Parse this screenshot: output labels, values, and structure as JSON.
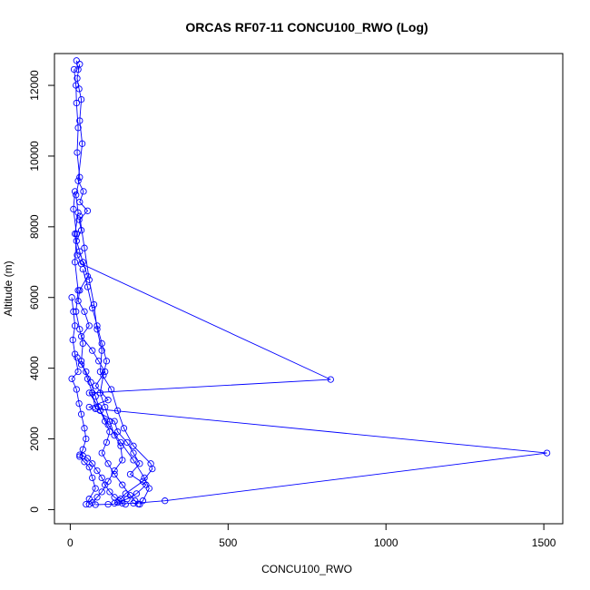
{
  "chart_data": {
    "type": "line",
    "title": "ORCAS RF07-11 CONCU100_RWO (Log)",
    "xlabel": "CONCU100_RWO",
    "ylabel": "Altitude (m)",
    "xlim": [
      -50,
      1560
    ],
    "ylim": [
      -400,
      12900
    ],
    "xticks": [
      0,
      500,
      1000,
      1500
    ],
    "yticks": [
      0,
      2000,
      4000,
      6000,
      8000,
      10000,
      12000
    ],
    "grid": false,
    "legend": "none",
    "color": "#0000ff",
    "marker": "open-circle",
    "series": [
      {
        "values": [
          [
            20,
            12700
          ],
          [
            25,
            12450
          ],
          [
            30,
            12600
          ],
          [
            22,
            12200
          ],
          [
            28,
            11900
          ],
          [
            35,
            11600
          ],
          [
            30,
            11000
          ],
          [
            38,
            10350
          ],
          [
            25,
            9300
          ],
          [
            42,
            9000
          ],
          [
            30,
            8700
          ],
          [
            55,
            8450
          ],
          [
            28,
            8200
          ],
          [
            35,
            7900
          ],
          [
            20,
            7600
          ],
          [
            30,
            7300
          ],
          [
            40,
            7000
          ],
          [
            55,
            6600
          ],
          [
            30,
            6200
          ],
          [
            25,
            5900
          ],
          [
            45,
            5600
          ],
          [
            60,
            5200
          ],
          [
            35,
            4900
          ],
          [
            70,
            4500
          ],
          [
            90,
            4200
          ],
          [
            110,
            3900
          ],
          [
            80,
            3500
          ],
          [
            120,
            3100
          ],
          [
            60,
            2900
          ],
          [
            140,
            2500
          ],
          [
            150,
            2200
          ],
          [
            180,
            1900
          ],
          [
            200,
            1600
          ],
          [
            220,
            1300
          ],
          [
            190,
            1000
          ],
          [
            240,
            700
          ],
          [
            210,
            450
          ],
          [
            180,
            300
          ],
          [
            150,
            200
          ]
        ]
      },
      {
        "values": [
          [
            12,
            12450
          ],
          [
            18,
            12000
          ],
          [
            20,
            11500
          ],
          [
            25,
            10800
          ],
          [
            22,
            10100
          ],
          [
            30,
            9400
          ],
          [
            18,
            8900
          ],
          [
            25,
            8400
          ],
          [
            15,
            7800
          ],
          [
            22,
            7200
          ],
          [
            35,
            6950
          ],
          [
            825,
            3680
          ],
          [
            60,
            3300
          ],
          [
            90,
            2900
          ],
          [
            120,
            2400
          ],
          [
            160,
            1900
          ],
          [
            200,
            1400
          ],
          [
            235,
            900
          ],
          [
            250,
            600
          ],
          [
            230,
            250
          ],
          [
            220,
            150
          ]
        ]
      },
      {
        "values": [
          [
            15,
            9000
          ],
          [
            10,
            8500
          ],
          [
            20,
            7800
          ],
          [
            15,
            7000
          ],
          [
            25,
            6200
          ],
          [
            18,
            5600
          ],
          [
            30,
            5100
          ],
          [
            40,
            4700
          ],
          [
            35,
            4200
          ],
          [
            55,
            3700
          ],
          [
            70,
            3300
          ],
          [
            80,
            2850
          ],
          [
            1510,
            1600
          ],
          [
            300,
            250
          ],
          [
            200,
            180
          ],
          [
            120,
            150
          ],
          [
            80,
            140
          ]
        ]
      },
      {
        "values": [
          [
            30,
            8300
          ],
          [
            45,
            7400
          ],
          [
            60,
            6500
          ],
          [
            75,
            5800
          ],
          [
            85,
            5100
          ],
          [
            100,
            4500
          ],
          [
            95,
            3900
          ],
          [
            130,
            3400
          ],
          [
            150,
            2800
          ],
          [
            170,
            2300
          ],
          [
            200,
            1800
          ],
          [
            255,
            1300
          ],
          [
            260,
            1150
          ],
          [
            230,
            800
          ],
          [
            175,
            450
          ],
          [
            160,
            300
          ],
          [
            140,
            180
          ]
        ]
      },
      {
        "values": [
          [
            5,
            6000
          ],
          [
            10,
            5600
          ],
          [
            15,
            5200
          ],
          [
            8,
            4800
          ],
          [
            15,
            4400
          ],
          [
            25,
            3900
          ],
          [
            5,
            3700
          ],
          [
            20,
            3400
          ],
          [
            28,
            3000
          ],
          [
            35,
            2700
          ],
          [
            45,
            2300
          ],
          [
            50,
            2000
          ],
          [
            40,
            1700
          ],
          [
            30,
            1500
          ],
          [
            45,
            1350
          ],
          [
            60,
            1200
          ],
          [
            70,
            900
          ],
          [
            80,
            600
          ],
          [
            60,
            300
          ],
          [
            50,
            150
          ]
        ]
      },
      {
        "values": [
          [
            40,
            6800
          ],
          [
            55,
            6300
          ],
          [
            70,
            5700
          ],
          [
            85,
            5200
          ],
          [
            100,
            4700
          ],
          [
            115,
            4200
          ],
          [
            105,
            3800
          ],
          [
            95,
            3300
          ],
          [
            110,
            2900
          ],
          [
            125,
            2500
          ],
          [
            140,
            2100
          ],
          [
            160,
            1800
          ],
          [
            165,
            1400
          ],
          [
            140,
            1100
          ],
          [
            120,
            800
          ],
          [
            100,
            500
          ],
          [
            85,
            350
          ],
          [
            70,
            200
          ],
          [
            60,
            150
          ]
        ]
      },
      {
        "values": [
          [
            22,
            4300
          ],
          [
            35,
            4100
          ],
          [
            50,
            3900
          ],
          [
            65,
            3600
          ],
          [
            80,
            3200
          ],
          [
            95,
            2800
          ],
          [
            110,
            2500
          ],
          [
            125,
            2200
          ],
          [
            115,
            1900
          ],
          [
            100,
            1600
          ],
          [
            120,
            1300
          ],
          [
            140,
            1000
          ],
          [
            165,
            700
          ],
          [
            190,
            400
          ],
          [
            205,
            250
          ],
          [
            215,
            160
          ]
        ]
      },
      {
        "values": [
          [
            30,
            1550
          ],
          [
            40,
            1520
          ],
          [
            55,
            1450
          ],
          [
            70,
            1300
          ],
          [
            85,
            1100
          ],
          [
            100,
            900
          ],
          [
            110,
            700
          ],
          [
            125,
            500
          ],
          [
            140,
            350
          ],
          [
            155,
            250
          ],
          [
            165,
            180
          ],
          [
            175,
            150
          ]
        ]
      }
    ]
  }
}
